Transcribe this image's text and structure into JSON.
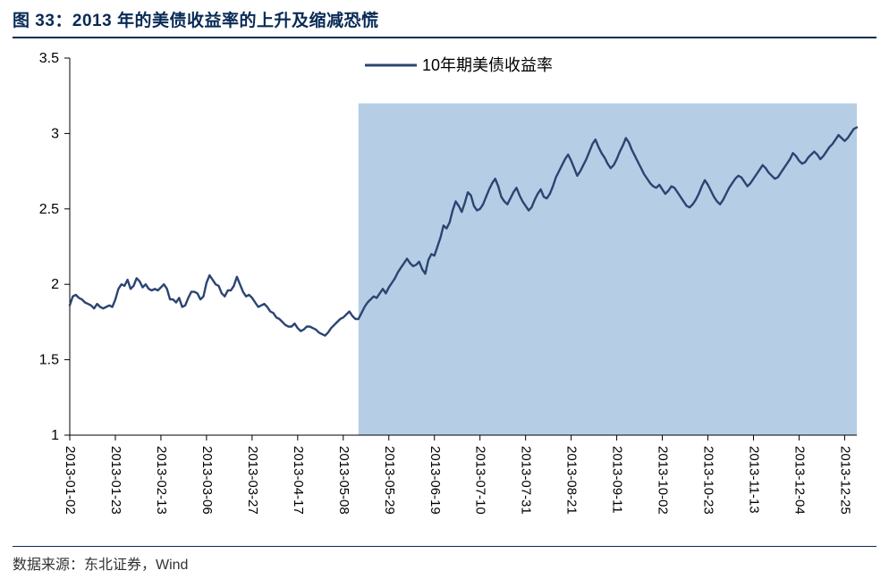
{
  "title": "图 33：2013 年的美债收益率的上升及缩减恐慌",
  "source": "数据来源：东北证券，Wind",
  "chart": {
    "type": "line",
    "background_color": "#ffffff",
    "legend": {
      "label": "10年期美债收益率",
      "position": "top-center",
      "fontsize": 18
    },
    "line_color": "#2b4472",
    "line_width": 2.4,
    "shade": {
      "x_start_idx": 95,
      "x_end_idx": 259,
      "fill": "#a9c5e0",
      "opacity": 0.85,
      "y_top": 3.2
    },
    "y_axis": {
      "lim": [
        1,
        3.5
      ],
      "ticks": [
        1,
        1.5,
        2,
        2.5,
        3,
        3.5
      ],
      "tick_labels": [
        "1",
        "1.5",
        "2",
        "2.5",
        "3",
        "3.5"
      ],
      "fontsize": 16,
      "tick_color": "#000000"
    },
    "x_axis": {
      "tick_labels": [
        "2013-01-02",
        "2013-01-23",
        "2013-02-13",
        "2013-03-06",
        "2013-03-27",
        "2013-04-17",
        "2013-05-08",
        "2013-05-29",
        "2013-06-19",
        "2013-07-10",
        "2013-07-31",
        "2013-08-21",
        "2013-09-11",
        "2013-10-02",
        "2013-10-23",
        "2013-11-13",
        "2013-12-04",
        "2013-12-25"
      ],
      "tick_idx": [
        0,
        15,
        30,
        45,
        60,
        75,
        90,
        105,
        120,
        135,
        150,
        165,
        180,
        195,
        210,
        225,
        240,
        255
      ],
      "rotation": 90,
      "fontsize": 15,
      "n_points": 260
    },
    "series": {
      "name": "10年期美债收益率",
      "y": [
        1.86,
        1.92,
        1.93,
        1.91,
        1.9,
        1.88,
        1.87,
        1.86,
        1.84,
        1.87,
        1.85,
        1.84,
        1.85,
        1.86,
        1.85,
        1.9,
        1.97,
        2.0,
        1.99,
        2.03,
        1.97,
        1.99,
        2.04,
        2.02,
        1.98,
        2.0,
        1.97,
        1.96,
        1.97,
        1.96,
        1.98,
        2.0,
        1.97,
        1.9,
        1.9,
        1.88,
        1.91,
        1.85,
        1.86,
        1.91,
        1.95,
        1.95,
        1.94,
        1.9,
        1.92,
        2.01,
        2.06,
        2.03,
        2.0,
        1.99,
        1.94,
        1.92,
        1.96,
        1.96,
        1.99,
        2.05,
        2.0,
        1.95,
        1.92,
        1.93,
        1.91,
        1.88,
        1.85,
        1.86,
        1.87,
        1.85,
        1.82,
        1.81,
        1.78,
        1.77,
        1.75,
        1.73,
        1.72,
        1.72,
        1.74,
        1.71,
        1.69,
        1.7,
        1.72,
        1.72,
        1.71,
        1.7,
        1.68,
        1.67,
        1.66,
        1.68,
        1.71,
        1.73,
        1.75,
        1.77,
        1.78,
        1.8,
        1.82,
        1.79,
        1.77,
        1.77,
        1.81,
        1.85,
        1.88,
        1.9,
        1.92,
        1.91,
        1.94,
        1.97,
        1.94,
        1.98,
        2.01,
        2.04,
        2.08,
        2.11,
        2.14,
        2.17,
        2.14,
        2.12,
        2.13,
        2.15,
        2.1,
        2.07,
        2.16,
        2.2,
        2.19,
        2.25,
        2.31,
        2.39,
        2.37,
        2.41,
        2.49,
        2.55,
        2.52,
        2.48,
        2.54,
        2.61,
        2.59,
        2.52,
        2.49,
        2.5,
        2.53,
        2.58,
        2.63,
        2.67,
        2.7,
        2.65,
        2.58,
        2.55,
        2.53,
        2.57,
        2.61,
        2.64,
        2.59,
        2.55,
        2.52,
        2.49,
        2.51,
        2.56,
        2.6,
        2.63,
        2.58,
        2.57,
        2.6,
        2.65,
        2.71,
        2.75,
        2.79,
        2.83,
        2.86,
        2.82,
        2.77,
        2.72,
        2.75,
        2.79,
        2.83,
        2.88,
        2.93,
        2.96,
        2.91,
        2.87,
        2.84,
        2.8,
        2.77,
        2.79,
        2.83,
        2.88,
        2.92,
        2.97,
        2.94,
        2.89,
        2.85,
        2.81,
        2.77,
        2.73,
        2.7,
        2.67,
        2.65,
        2.64,
        2.66,
        2.63,
        2.6,
        2.62,
        2.65,
        2.64,
        2.61,
        2.58,
        2.55,
        2.52,
        2.51,
        2.53,
        2.56,
        2.6,
        2.65,
        2.69,
        2.66,
        2.62,
        2.58,
        2.55,
        2.53,
        2.56,
        2.6,
        2.64,
        2.67,
        2.7,
        2.72,
        2.71,
        2.68,
        2.65,
        2.67,
        2.7,
        2.73,
        2.76,
        2.79,
        2.77,
        2.74,
        2.72,
        2.7,
        2.71,
        2.74,
        2.77,
        2.8,
        2.83,
        2.87,
        2.85,
        2.82,
        2.8,
        2.81,
        2.84,
        2.86,
        2.88,
        2.86,
        2.83,
        2.85,
        2.88,
        2.91,
        2.93,
        2.96,
        2.99,
        2.97,
        2.95,
        2.97,
        3.0,
        3.03,
        3.04
      ]
    }
  }
}
